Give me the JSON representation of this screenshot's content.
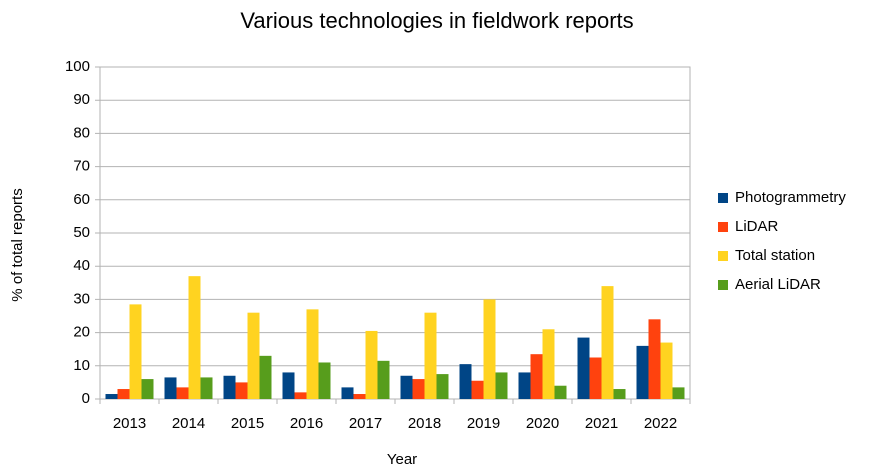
{
  "chart_data": {
    "type": "bar",
    "title": "Various technologies in fieldwork reports",
    "x_label": "Year",
    "y_label": "% of total reports",
    "categories": [
      "2013",
      "2014",
      "2015",
      "2016",
      "2017",
      "2018",
      "2019",
      "2020",
      "2021",
      "2022"
    ],
    "series": [
      {
        "name": "Photogrammetry",
        "color": "#004586",
        "values": [
          1.5,
          6.5,
          7,
          8,
          3.5,
          7,
          10.5,
          8,
          18.5,
          16
        ]
      },
      {
        "name": "LiDAR",
        "color": "#ff420e",
        "values": [
          3,
          3.5,
          5,
          2,
          1.5,
          6,
          5.5,
          13.5,
          12.5,
          24
        ]
      },
      {
        "name": "Total station",
        "color": "#ffd320",
        "values": [
          28.5,
          37,
          26,
          27,
          20.5,
          26,
          30,
          21,
          34,
          17
        ]
      },
      {
        "name": "Aerial LiDAR",
        "color": "#579d1c",
        "values": [
          6,
          6.5,
          13,
          11,
          11.5,
          7.5,
          8,
          4,
          3,
          3.5
        ]
      }
    ],
    "ylim": [
      0,
      100
    ],
    "yticks": [
      0,
      10,
      20,
      30,
      40,
      50,
      60,
      70,
      80,
      90,
      100
    ],
    "grid": true,
    "legend": "right"
  }
}
